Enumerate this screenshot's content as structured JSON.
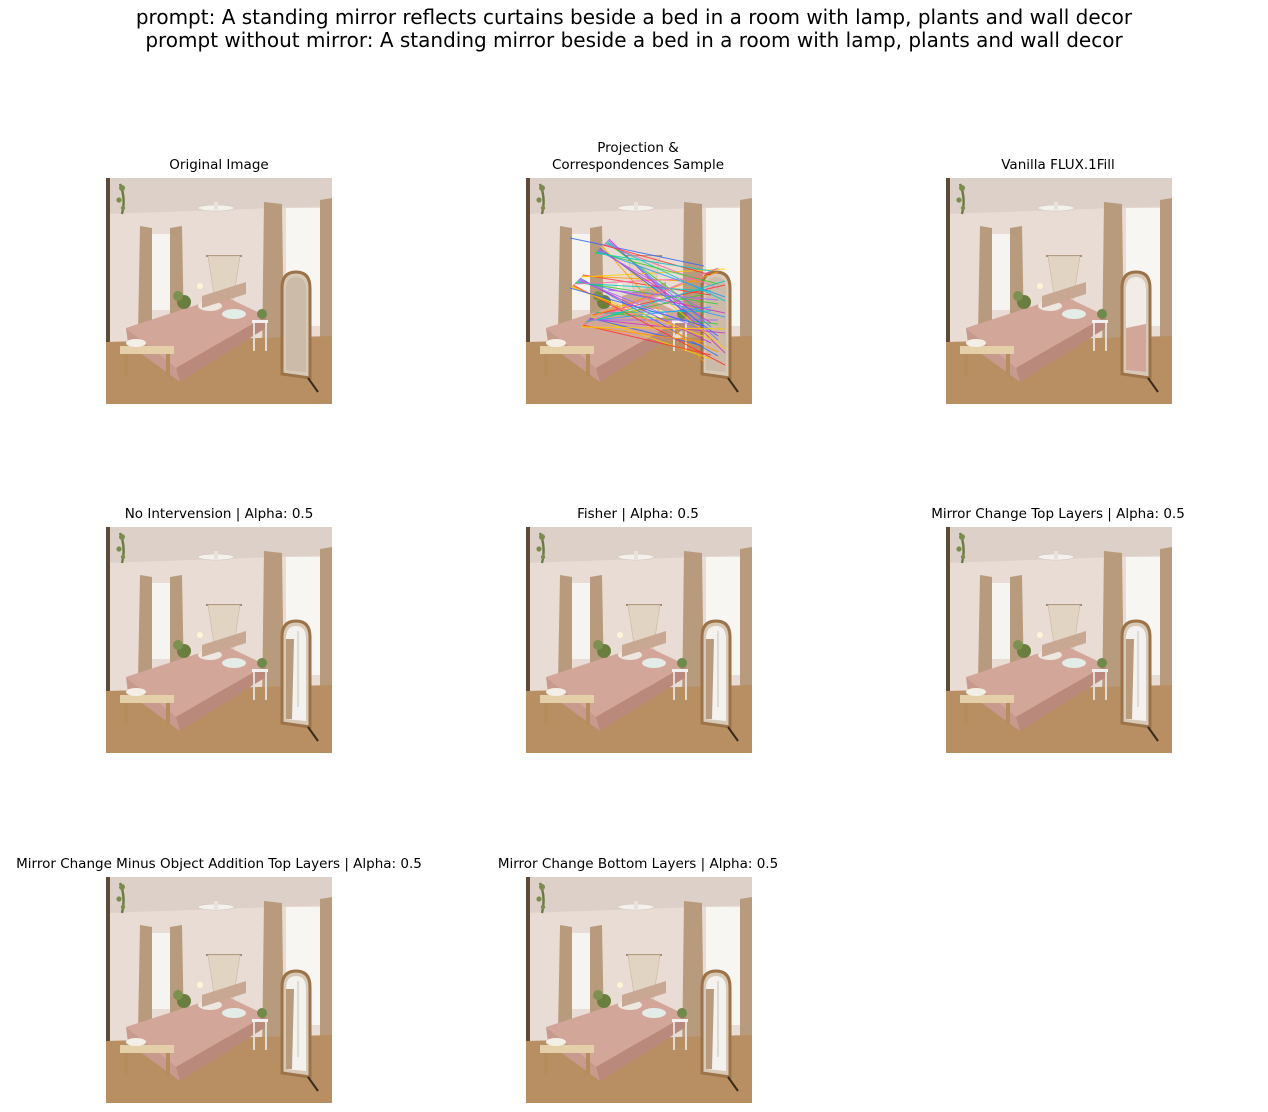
{
  "figure": {
    "suptitle_line1": "prompt: A standing mirror reflects curtains beside a bed in a room with lamp, plants and wall decor",
    "suptitle_line2": "prompt without mirror: A standing mirror beside a bed in a room with lamp, plants and wall decor"
  },
  "panels": [
    {
      "title": "Original Image",
      "mirror": "none",
      "correspondences": false
    },
    {
      "title_line1": "Projection &",
      "title_line2": "Correspondences Sample",
      "mirror": "none",
      "correspondences": true
    },
    {
      "title": "Vanilla FLUX.1Fill",
      "mirror": "pink",
      "correspondences": false
    },
    {
      "title": "No Intervension | Alpha: 0.5",
      "mirror": "window",
      "correspondences": false
    },
    {
      "title": "Fisher | Alpha: 0.5",
      "mirror": "window",
      "correspondences": false
    },
    {
      "title": "Mirror Change Top Layers | Alpha: 0.5",
      "mirror": "window",
      "correspondences": false
    },
    {
      "title": "Mirror Change Minus Object Addition Top Layers | Alpha: 0.5",
      "mirror": "window",
      "correspondences": false
    },
    {
      "title": "Mirror Change Bottom Layers | Alpha: 0.5",
      "mirror": "window",
      "correspondences": false
    }
  ],
  "colors": {
    "wall": "#e9dcd4",
    "ceiling": "#ddd0c8",
    "curtain": "#b89a7c",
    "floor": "#b88f63",
    "bed": "#d3a69a",
    "frame": "#9c7248"
  }
}
